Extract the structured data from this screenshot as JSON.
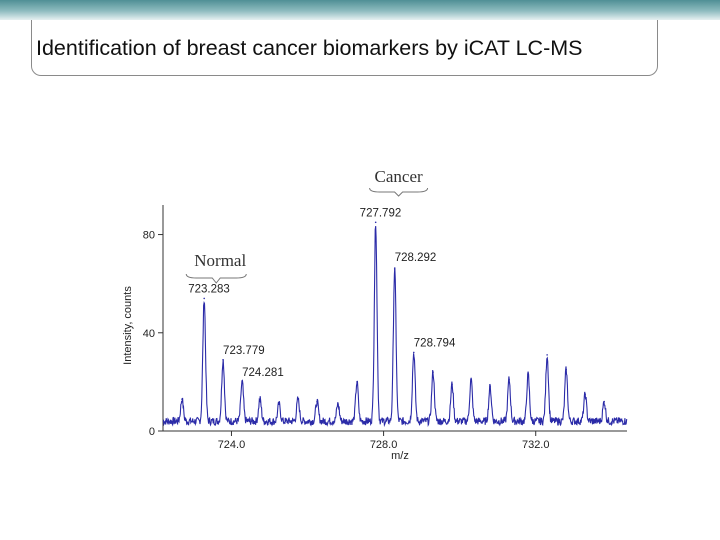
{
  "slide": {
    "title": "Identification of breast cancer biomarkers by iCAT LC-MS"
  },
  "chart_data": {
    "type": "line",
    "xlabel": "m/z",
    "ylabel": "Intensity, counts",
    "xlim": [
      722.2,
      734.4
    ],
    "ylim": [
      0,
      90
    ],
    "x_ticks": [
      724.0,
      728.0,
      732.0
    ],
    "x_tick_labels": [
      "724.0",
      "728.0",
      "732.0"
    ],
    "y_ticks": [
      0,
      40,
      80
    ],
    "y_tick_labels": [
      "0",
      "40",
      "80"
    ],
    "series_color": "#2b2ba8",
    "baseline": 4,
    "peaks": [
      {
        "x": 723.283,
        "y": 54,
        "label": "723.283"
      },
      {
        "x": 723.779,
        "y": 29,
        "label": "723.779"
      },
      {
        "x": 724.281,
        "y": 20,
        "label": "724.281"
      },
      {
        "x": 727.792,
        "y": 85,
        "label": "727.792"
      },
      {
        "x": 728.292,
        "y": 66,
        "label": "728.292"
      },
      {
        "x": 728.794,
        "y": 32,
        "label": "728.794"
      },
      {
        "x": 722.7,
        "y": 13
      },
      {
        "x": 724.75,
        "y": 13
      },
      {
        "x": 725.25,
        "y": 11
      },
      {
        "x": 725.75,
        "y": 13
      },
      {
        "x": 726.25,
        "y": 12
      },
      {
        "x": 726.8,
        "y": 11
      },
      {
        "x": 727.3,
        "y": 20
      },
      {
        "x": 729.3,
        "y": 24
      },
      {
        "x": 729.8,
        "y": 19
      },
      {
        "x": 730.3,
        "y": 21
      },
      {
        "x": 730.8,
        "y": 18
      },
      {
        "x": 731.3,
        "y": 21
      },
      {
        "x": 731.8,
        "y": 23
      },
      {
        "x": 732.3,
        "y": 31
      },
      {
        "x": 732.8,
        "y": 25
      },
      {
        "x": 733.3,
        "y": 15
      },
      {
        "x": 733.8,
        "y": 12
      }
    ],
    "annotations": {
      "normal": "Normal",
      "cancer": "Cancer"
    }
  }
}
